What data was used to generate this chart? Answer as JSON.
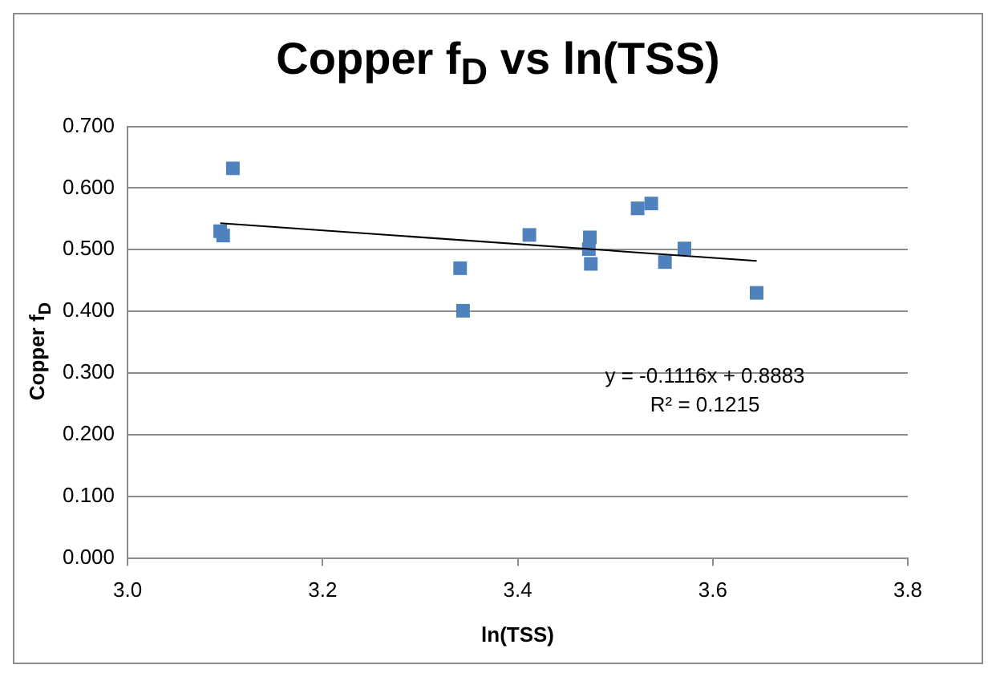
{
  "chart_data": {
    "type": "scatter",
    "title": "Copper f$_{D}$ vs ln(TSS)",
    "xlabel": "ln(TSS)",
    "ylabel": "Copper f$_{D}$",
    "x": [
      3.108,
      3.095,
      3.098,
      3.341,
      3.344,
      3.412,
      3.474,
      3.473,
      3.475,
      3.523,
      3.537,
      3.551,
      3.571,
      3.645
    ],
    "series": [
      {
        "type": "scatter",
        "color": "#4f81bd",
        "marker": "square",
        "values": [
          0.632,
          0.53,
          0.523,
          0.47,
          0.401,
          0.524,
          0.52,
          0.501,
          0.477,
          0.567,
          0.575,
          0.48,
          0.502,
          0.43
        ]
      },
      {
        "type": "line",
        "color": "#000000",
        "marker": "none",
        "x": [
          3.095,
          3.645
        ],
        "values": [
          0.543,
          0.482
        ]
      }
    ],
    "xlim": [
      3.0,
      3.8
    ],
    "xticks": [
      {
        "value": 3.0,
        "label": "3.0"
      },
      {
        "value": 3.2,
        "label": "3.2"
      },
      {
        "value": 3.4,
        "label": "3.4"
      },
      {
        "value": 3.6,
        "label": "3.6"
      },
      {
        "value": 3.8,
        "label": "3.8"
      }
    ],
    "ylim": [
      0,
      0.7
    ],
    "yticks": [
      {
        "value": 0,
        "label": "0.000"
      },
      {
        "value": 0.1,
        "label": "0.100"
      },
      {
        "value": 0.2,
        "label": "0.200"
      },
      {
        "value": 0.3,
        "label": "0.300"
      },
      {
        "value": 0.4,
        "label": "0.400"
      },
      {
        "value": 0.5,
        "label": "0.500"
      },
      {
        "value": 0.6,
        "label": "0.600"
      },
      {
        "value": 0.7,
        "label": "0.700"
      }
    ],
    "grid": "y",
    "legend": false,
    "annotations": [
      "y = -0.1116x + 0.8883",
      "R² = 0.1215"
    ]
  }
}
